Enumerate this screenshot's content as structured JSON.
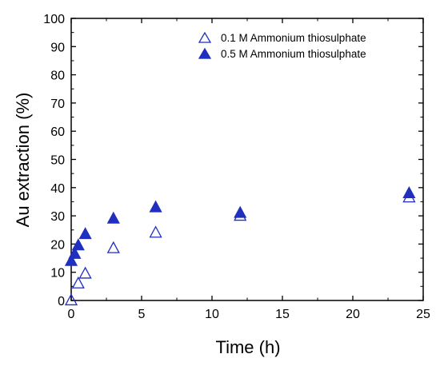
{
  "chart_data": {
    "type": "scatter",
    "xlabel": "Time (h)",
    "ylabel": "Au extraction (%)",
    "xlim": [
      0,
      25
    ],
    "ylim": [
      0,
      100
    ],
    "xticks": [
      "0",
      "5",
      "10",
      "15",
      "20",
      "25"
    ],
    "yticks": [
      "0",
      "10",
      "20",
      "30",
      "40",
      "50",
      "60",
      "70",
      "80",
      "90",
      "100"
    ],
    "grid": false,
    "legend_position": "top-right",
    "series": [
      {
        "name": "0.1 M Ammonium thiosulphate",
        "marker": "triangle-open",
        "color": "#1f2fbf",
        "x": [
          0,
          0.5,
          1,
          3,
          6,
          12,
          24
        ],
        "y": [
          0,
          6,
          9.5,
          18.5,
          24,
          30,
          36.5
        ]
      },
      {
        "name": "0.5 M Ammonium thiosulphate",
        "marker": "triangle-filled",
        "color": "#1f2fbf",
        "x": [
          0,
          0.25,
          0.5,
          1,
          3,
          6,
          12,
          24
        ],
        "y": [
          14,
          16.5,
          19.5,
          23.5,
          29,
          33,
          31,
          38
        ]
      }
    ]
  }
}
